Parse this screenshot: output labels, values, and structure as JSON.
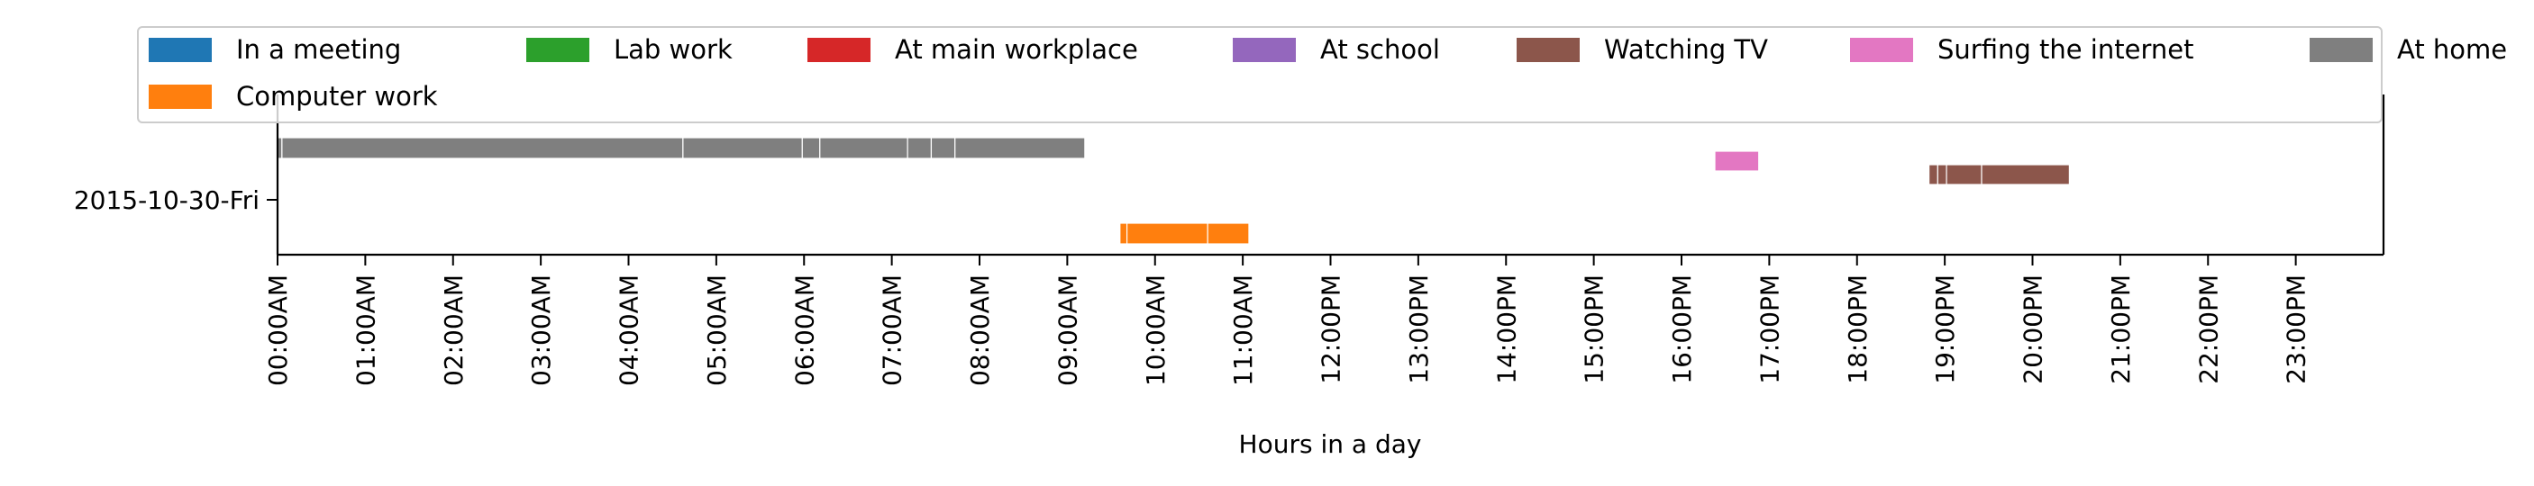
{
  "chart_data": {
    "type": "timeline",
    "xlabel": "Hours in a day",
    "ylabel": "",
    "xlim": [
      0,
      24
    ],
    "x_tick_labels": [
      "00:00AM",
      "01:00AM",
      "02:00AM",
      "03:00AM",
      "04:00AM",
      "05:00AM",
      "06:00AM",
      "07:00AM",
      "08:00AM",
      "09:00AM",
      "10:00AM",
      "11:00AM",
      "12:00PM",
      "13:00PM",
      "14:00PM",
      "15:00PM",
      "16:00PM",
      "17:00PM",
      "18:00PM",
      "19:00PM",
      "20:00PM",
      "21:00PM",
      "22:00PM",
      "23:00PM"
    ],
    "y_categories": [
      "2015-10-30-Fri"
    ],
    "legend_position": "top",
    "legend": [
      {
        "name": "In a meeting",
        "color": "#1f77b4"
      },
      {
        "name": "Computer work",
        "color": "#ff7f0e"
      },
      {
        "name": "Lab work",
        "color": "#2ca02c"
      },
      {
        "name": "At main workplace",
        "color": "#d62728"
      },
      {
        "name": "At school",
        "color": "#9467bd"
      },
      {
        "name": "Watching TV",
        "color": "#8c564b"
      },
      {
        "name": "Surfing the internet",
        "color": "#e377c2"
      },
      {
        "name": "At home",
        "color": "#7f7f7f"
      }
    ],
    "series": [
      {
        "name": "At home",
        "day": "2015-10-30-Fri",
        "color": "#7f7f7f",
        "intervals": [
          [
            0.0,
            0.05
          ],
          [
            0.05,
            4.62
          ],
          [
            4.62,
            5.98
          ],
          [
            5.98,
            6.18
          ],
          [
            6.18,
            7.18
          ],
          [
            7.18,
            7.45
          ],
          [
            7.45,
            7.72
          ],
          [
            7.72,
            9.2
          ]
        ]
      },
      {
        "name": "Surfing the internet",
        "day": "2015-10-30-Fri",
        "color": "#e377c2",
        "intervals": [
          [
            16.38,
            16.88
          ]
        ]
      },
      {
        "name": "Watching TV",
        "day": "2015-10-30-Fri",
        "color": "#8c564b",
        "intervals": [
          [
            18.82,
            18.92
          ],
          [
            18.92,
            19.02
          ],
          [
            19.02,
            19.42
          ],
          [
            19.42,
            20.42
          ]
        ]
      },
      {
        "name": "Computer work",
        "day": "2015-10-30-Fri",
        "color": "#ff7f0e",
        "intervals": [
          [
            9.6,
            9.68
          ],
          [
            9.68,
            10.6
          ],
          [
            10.6,
            11.07
          ]
        ]
      }
    ]
  }
}
